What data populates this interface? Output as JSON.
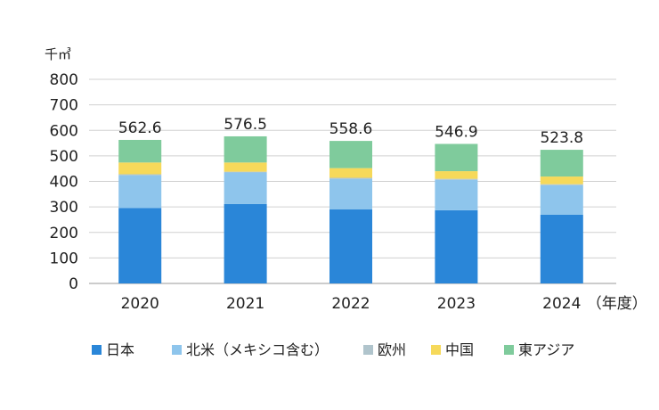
{
  "chart_data": {
    "type": "bar",
    "stacked": true,
    "unit": "千㎥",
    "categories": [
      "2020",
      "2021",
      "2022",
      "2023",
      "2024"
    ],
    "x_suffix": "（年度）",
    "ylim": [
      0,
      800
    ],
    "yticks": [
      0,
      100,
      200,
      300,
      400,
      500,
      600,
      700,
      800
    ],
    "grid": true,
    "legend_position": "bottom",
    "series": [
      {
        "name": "日本",
        "color": "#2a86d8",
        "values": [
          296,
          311,
          290,
          287,
          269
        ]
      },
      {
        "name": "北米（メキシコ含む）",
        "color": "#8ec5ec",
        "values": [
          128,
          124,
          120,
          119,
          116
        ]
      },
      {
        "name": "欧州",
        "color": "#b0c4cc",
        "values": [
          4,
          3,
          4,
          4,
          4
        ]
      },
      {
        "name": "中国",
        "color": "#f6d95a",
        "values": [
          46,
          36,
          38,
          30,
          30
        ]
      },
      {
        "name": "東アジア",
        "color": "#7fcb9c",
        "values": [
          88.6,
          102.5,
          106.6,
          106.9,
          104.8
        ]
      }
    ],
    "totals": [
      "562.6",
      "576.5",
      "558.6",
      "546.9",
      "523.8"
    ]
  }
}
